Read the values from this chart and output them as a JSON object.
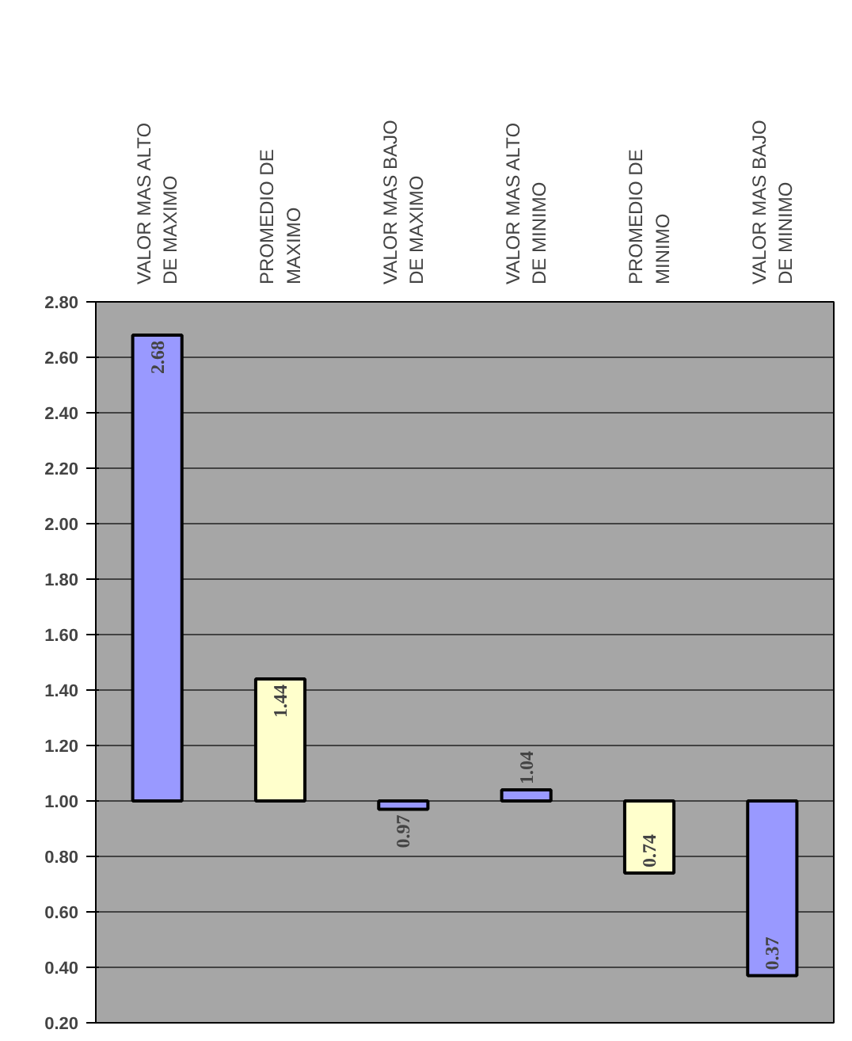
{
  "chart_data": {
    "type": "bar",
    "categories": [
      "VALOR MAS ALTO\nDE MAXIMO",
      "PROMEDIO DE\nMAXIMO",
      "VALOR MAS BAJO\nDE MAXIMO",
      "VALOR MAS ALTO\nDE MINIMO",
      "PROMEDIO DE\nMINIMO",
      "VALOR MAS BAJO\nDE MINIMO"
    ],
    "base": [
      1.0,
      1.0,
      1.0,
      1.0,
      1.0,
      1.0
    ],
    "values": [
      1.68,
      0.44,
      -0.03,
      0.04,
      -0.26,
      -0.63
    ],
    "colors": [
      "#9999ff",
      "#ffffcc",
      "#9999ff",
      "#9999ff",
      "#ffffcc",
      "#9999ff"
    ],
    "value_labels": [
      "2.68",
      "1.44",
      "0.97",
      "1.04",
      "0.74",
      "0.37"
    ],
    "ylim": [
      0.2,
      2.8
    ],
    "yticks": [
      {
        "value": 0.2,
        "label": "0.20"
      },
      {
        "value": 0.4,
        "label": "0.40"
      },
      {
        "value": 0.6,
        "label": "0.60"
      },
      {
        "value": 0.8,
        "label": "0.80"
      },
      {
        "value": 1.0,
        "label": "1.00"
      },
      {
        "value": 1.2,
        "label": "1.20"
      },
      {
        "value": 1.4,
        "label": "1.40"
      },
      {
        "value": 1.6,
        "label": "1.60"
      },
      {
        "value": 1.8,
        "label": "1.80"
      },
      {
        "value": 2.0,
        "label": "2.00"
      },
      {
        "value": 2.2,
        "label": "2.20"
      },
      {
        "value": 2.4,
        "label": "2.40"
      },
      {
        "value": 2.6,
        "label": "2.60"
      },
      {
        "value": 2.8,
        "label": "2.80"
      }
    ],
    "grid": "y"
  }
}
